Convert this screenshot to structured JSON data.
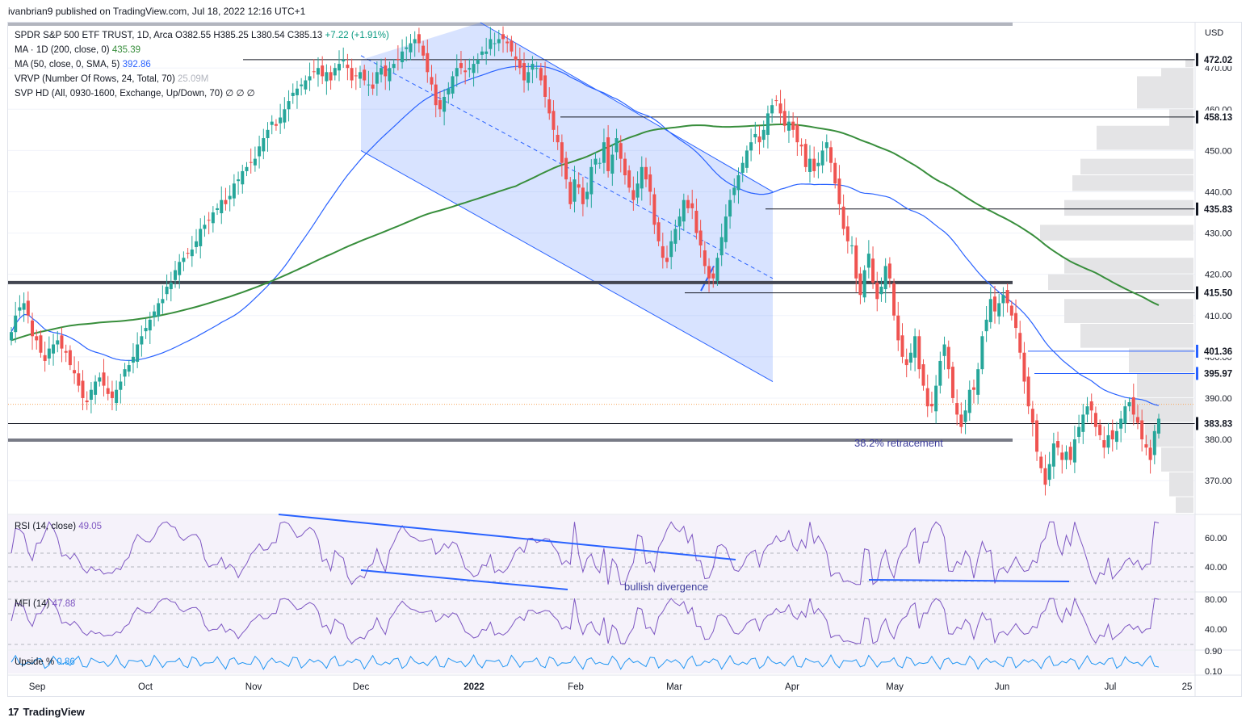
{
  "header": {
    "publish_line": "ivanbrian9 published on TradingView.com, Jul 18, 2022 12:16 UTC+1"
  },
  "legend": {
    "symbol": "SPDR S&P 500 ETF TRUST, 1D, Arca",
    "o_label": "O",
    "o": "382.55",
    "h_label": "H",
    "h": "385.25",
    "l_label": "L",
    "l": "380.54",
    "c_label": "C",
    "c": "385.13",
    "change": "+7.22 (+1.91%)",
    "ma200_label": "MA · 1D (200, close, 0)",
    "ma200": "435.39",
    "ma50_label": "MA (50, close, 0, SMA, 5)",
    "ma50": "392.86",
    "vrvp_label": "VRVP (Number Of Rows, 24, Total, 70)",
    "vrvp": "25.09M",
    "svp_label": "SVP HD (All, 0930-1600, Exchange, Up/Down, 70)",
    "svp": "∅ ∅ ∅"
  },
  "footer": {
    "brand": "TradingView"
  },
  "chart_data": {
    "type": "candlestick",
    "currency": "USD",
    "price_ticks": [
      "470.00",
      "460.00",
      "450.00",
      "440.00",
      "430.00",
      "420.00",
      "410.00",
      "400.00",
      "390.00",
      "380.00",
      "370.00"
    ],
    "price_range": [
      362,
      481
    ],
    "x_labels": [
      "Sep",
      "Oct",
      "Nov",
      "Dec",
      "2022",
      "Feb",
      "Mar",
      "Apr",
      "May",
      "Jun",
      "Jul",
      "25"
    ],
    "level_labels": [
      "472.02",
      "458.13",
      "435.83",
      "415.50",
      "401.36",
      "395.97",
      "383.83"
    ],
    "annotations": {
      "retracement": "38.2% retracement",
      "divergence": "bullish divergence"
    },
    "closes": [
      406,
      410,
      412,
      413,
      410,
      405,
      404,
      401,
      399,
      402,
      403,
      404,
      402,
      401,
      398,
      396,
      393,
      390,
      389,
      392,
      394,
      395,
      393,
      391,
      390,
      392,
      394,
      397,
      398,
      400,
      403,
      405,
      407,
      409,
      411,
      413,
      414,
      417,
      418,
      421,
      423,
      424,
      425,
      426,
      428,
      431,
      432,
      433,
      435,
      436,
      438,
      437,
      439,
      442,
      443,
      445,
      446,
      447,
      448,
      451,
      453,
      455,
      457,
      456,
      458,
      460,
      462,
      464,
      465,
      466,
      467,
      468,
      469,
      470,
      468,
      469,
      467,
      470,
      471,
      472,
      470,
      467,
      468,
      469,
      467,
      466,
      465,
      469,
      470,
      468,
      470,
      471,
      472,
      474,
      475,
      476,
      477,
      476,
      473,
      469,
      466,
      461,
      460,
      463,
      465,
      468,
      470,
      470,
      469,
      470,
      471,
      472,
      474,
      474,
      477,
      476,
      477,
      477,
      476,
      474,
      472,
      470,
      467,
      469,
      471,
      470,
      467,
      463,
      459,
      455,
      452,
      447,
      443,
      437,
      443,
      441,
      437,
      440,
      446,
      448,
      447,
      452,
      445,
      449,
      453,
      448,
      444,
      441,
      438,
      442,
      446,
      443,
      440,
      432,
      428,
      424,
      423,
      428,
      431,
      434,
      438,
      436,
      436,
      430,
      427,
      422,
      419,
      419,
      424,
      429,
      434,
      438,
      441,
      444,
      447,
      450,
      452,
      454,
      452,
      455,
      459,
      461,
      462,
      459,
      456,
      457,
      455,
      452,
      451,
      446,
      448,
      445,
      447,
      450,
      452,
      447,
      442,
      437,
      431,
      428,
      427,
      419,
      415,
      421,
      425,
      418,
      414,
      417,
      422,
      419,
      410,
      404,
      400,
      398,
      401,
      405,
      397,
      393,
      388,
      388,
      393,
      399,
      403,
      397,
      390,
      386,
      383,
      387,
      392,
      392,
      397,
      405,
      409,
      414,
      411,
      413,
      415,
      413,
      410,
      407,
      401,
      394,
      388,
      384,
      377,
      373,
      369,
      374,
      379,
      378,
      375,
      377,
      375,
      380,
      383,
      386,
      388,
      387,
      383,
      381,
      378,
      381,
      380,
      382,
      385,
      388,
      389,
      386,
      384,
      380,
      378,
      375,
      382,
      385
    ]
  }
}
